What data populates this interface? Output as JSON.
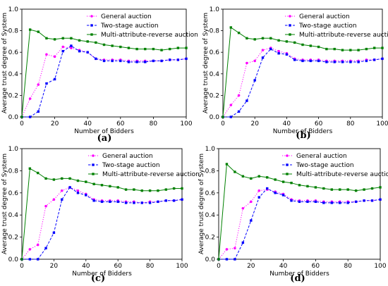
{
  "chart_data": [
    {
      "type": "line",
      "panel_label": "(a)",
      "xlabel": "Number of Bidders",
      "ylabel": "Average trust degree of System",
      "xlim": [
        0,
        100
      ],
      "ylim": [
        0,
        1.0
      ],
      "xticks": [
        "0",
        "20",
        "40",
        "60",
        "80",
        "100"
      ],
      "yticks": [
        "0.0",
        "0.2",
        "0.4",
        "0.6",
        "0.8",
        "1.0"
      ],
      "grid": false,
      "legend_position": "top-right",
      "x": [
        0,
        5,
        10,
        15,
        20,
        25,
        30,
        35,
        40,
        45,
        50,
        55,
        60,
        65,
        70,
        75,
        80,
        85,
        90,
        95,
        100
      ],
      "series": [
        {
          "name": "General auction",
          "color": "#ff00ff",
          "linestyle": "dotted",
          "marker": "circle",
          "values": [
            0.0,
            0.17,
            0.3,
            0.58,
            0.56,
            0.65,
            0.64,
            0.62,
            0.6,
            0.54,
            0.53,
            0.53,
            0.53,
            0.52,
            0.52,
            0.52,
            0.52,
            0.52,
            0.53,
            0.53,
            0.54
          ]
        },
        {
          "name": "Two-stage auction",
          "color": "#0000ff",
          "linestyle": "dashed",
          "marker": "square",
          "values": [
            0.0,
            0.0,
            0.05,
            0.31,
            0.35,
            0.61,
            0.66,
            0.61,
            0.6,
            0.54,
            0.52,
            0.52,
            0.52,
            0.51,
            0.51,
            0.51,
            0.52,
            0.52,
            0.53,
            0.53,
            0.54
          ]
        },
        {
          "name": "Multi-attribute-reverse auction",
          "color": "#008000",
          "linestyle": "solid",
          "marker": "square",
          "values": [
            0.0,
            0.81,
            0.79,
            0.73,
            0.72,
            0.73,
            0.73,
            0.71,
            0.7,
            0.69,
            0.67,
            0.66,
            0.65,
            0.64,
            0.63,
            0.63,
            0.63,
            0.62,
            0.63,
            0.64,
            0.64
          ]
        }
      ]
    },
    {
      "type": "line",
      "panel_label": "(b)",
      "xlabel": "Number of Bidders",
      "ylabel": "Average trust degree of System",
      "xlim": [
        0,
        100
      ],
      "ylim": [
        0,
        1.0
      ],
      "xticks": [
        "0",
        "20",
        "40",
        "60",
        "80",
        "100"
      ],
      "yticks": [
        "0.0",
        "0.2",
        "0.4",
        "0.6",
        "0.8",
        "1.0"
      ],
      "grid": false,
      "legend_position": "top-right",
      "x": [
        0,
        5,
        10,
        15,
        20,
        25,
        30,
        35,
        40,
        45,
        50,
        55,
        60,
        65,
        70,
        75,
        80,
        85,
        90,
        95,
        100
      ],
      "series": [
        {
          "name": "General auction",
          "color": "#ff00ff",
          "linestyle": "dotted",
          "marker": "circle",
          "values": [
            0.0,
            0.11,
            0.2,
            0.5,
            0.52,
            0.62,
            0.64,
            0.61,
            0.59,
            0.54,
            0.53,
            0.53,
            0.53,
            0.52,
            0.52,
            0.52,
            0.52,
            0.52,
            0.53,
            0.53,
            0.54
          ]
        },
        {
          "name": "Two-stage auction",
          "color": "#0000ff",
          "linestyle": "dashed",
          "marker": "square",
          "values": [
            0.0,
            0.0,
            0.05,
            0.15,
            0.34,
            0.55,
            0.63,
            0.59,
            0.58,
            0.53,
            0.52,
            0.52,
            0.52,
            0.51,
            0.51,
            0.51,
            0.51,
            0.51,
            0.52,
            0.53,
            0.54
          ]
        },
        {
          "name": "Multi-attribute-reverse auction",
          "color": "#008000",
          "linestyle": "solid",
          "marker": "square",
          "values": [
            0.0,
            0.83,
            0.78,
            0.73,
            0.72,
            0.73,
            0.73,
            0.71,
            0.7,
            0.69,
            0.67,
            0.66,
            0.65,
            0.63,
            0.63,
            0.62,
            0.62,
            0.62,
            0.63,
            0.64,
            0.64
          ]
        }
      ]
    },
    {
      "type": "line",
      "panel_label": "(c)",
      "xlabel": "Number of Bidders",
      "ylabel": "Average trust degree of System",
      "xlim": [
        0,
        100
      ],
      "ylim": [
        0,
        1.0
      ],
      "xticks": [
        "0",
        "20",
        "40",
        "60",
        "80",
        "100"
      ],
      "yticks": [
        "0.0",
        "0.2",
        "0.4",
        "0.6",
        "0.8",
        "1.0"
      ],
      "grid": false,
      "legend_position": "top-right",
      "x": [
        0,
        5,
        10,
        15,
        20,
        25,
        30,
        35,
        40,
        45,
        50,
        55,
        60,
        65,
        70,
        75,
        80,
        85,
        90,
        95,
        100
      ],
      "series": [
        {
          "name": "General auction",
          "color": "#ff00ff",
          "linestyle": "dotted",
          "marker": "circle",
          "values": [
            0.0,
            0.09,
            0.13,
            0.48,
            0.54,
            0.62,
            0.65,
            0.62,
            0.59,
            0.54,
            0.53,
            0.53,
            0.53,
            0.52,
            0.52,
            0.51,
            0.52,
            0.52,
            0.53,
            0.53,
            0.54
          ]
        },
        {
          "name": "Two-stage auction",
          "color": "#0000ff",
          "linestyle": "dashed",
          "marker": "square",
          "values": [
            0.0,
            0.0,
            0.0,
            0.1,
            0.24,
            0.54,
            0.65,
            0.6,
            0.58,
            0.53,
            0.52,
            0.52,
            0.52,
            0.51,
            0.51,
            0.51,
            0.51,
            0.52,
            0.53,
            0.53,
            0.54
          ]
        },
        {
          "name": "Multi-attribute-reverse auction",
          "color": "#008000",
          "linestyle": "solid",
          "marker": "square",
          "values": [
            0.0,
            0.82,
            0.78,
            0.73,
            0.72,
            0.73,
            0.73,
            0.71,
            0.7,
            0.68,
            0.67,
            0.66,
            0.65,
            0.63,
            0.63,
            0.62,
            0.62,
            0.62,
            0.63,
            0.64,
            0.64
          ]
        }
      ]
    },
    {
      "type": "line",
      "panel_label": "(d)",
      "xlabel": "Number of Bidders",
      "ylabel": "Average trust degree of System",
      "xlim": [
        0,
        100
      ],
      "ylim": [
        0,
        1.0
      ],
      "xticks": [
        "0",
        "20",
        "40",
        "60",
        "80",
        "100"
      ],
      "yticks": [
        "0.0",
        "0.2",
        "0.4",
        "0.6",
        "0.8",
        "1.0"
      ],
      "grid": false,
      "legend_position": "top-right",
      "x": [
        0,
        5,
        10,
        15,
        20,
        25,
        30,
        35,
        40,
        45,
        50,
        55,
        60,
        65,
        70,
        75,
        80,
        85,
        90,
        95,
        100
      ],
      "series": [
        {
          "name": "General auction",
          "color": "#ff00ff",
          "linestyle": "dotted",
          "marker": "circle",
          "values": [
            0.0,
            0.09,
            0.1,
            0.46,
            0.52,
            0.62,
            0.63,
            0.61,
            0.59,
            0.54,
            0.53,
            0.53,
            0.53,
            0.52,
            0.52,
            0.52,
            0.52,
            0.52,
            0.53,
            0.53,
            0.54
          ]
        },
        {
          "name": "Two-stage auction",
          "color": "#0000ff",
          "linestyle": "dashed",
          "marker": "square",
          "values": [
            0.0,
            0.0,
            0.0,
            0.15,
            0.35,
            0.56,
            0.64,
            0.6,
            0.58,
            0.53,
            0.52,
            0.52,
            0.52,
            0.51,
            0.51,
            0.51,
            0.51,
            0.52,
            0.53,
            0.53,
            0.54
          ]
        },
        {
          "name": "Multi-attribute-reverse auction",
          "color": "#008000",
          "linestyle": "solid",
          "marker": "square",
          "values": [
            0.0,
            0.86,
            0.79,
            0.75,
            0.73,
            0.75,
            0.74,
            0.72,
            0.7,
            0.69,
            0.67,
            0.66,
            0.65,
            0.64,
            0.63,
            0.63,
            0.63,
            0.62,
            0.63,
            0.64,
            0.65
          ]
        }
      ]
    }
  ]
}
